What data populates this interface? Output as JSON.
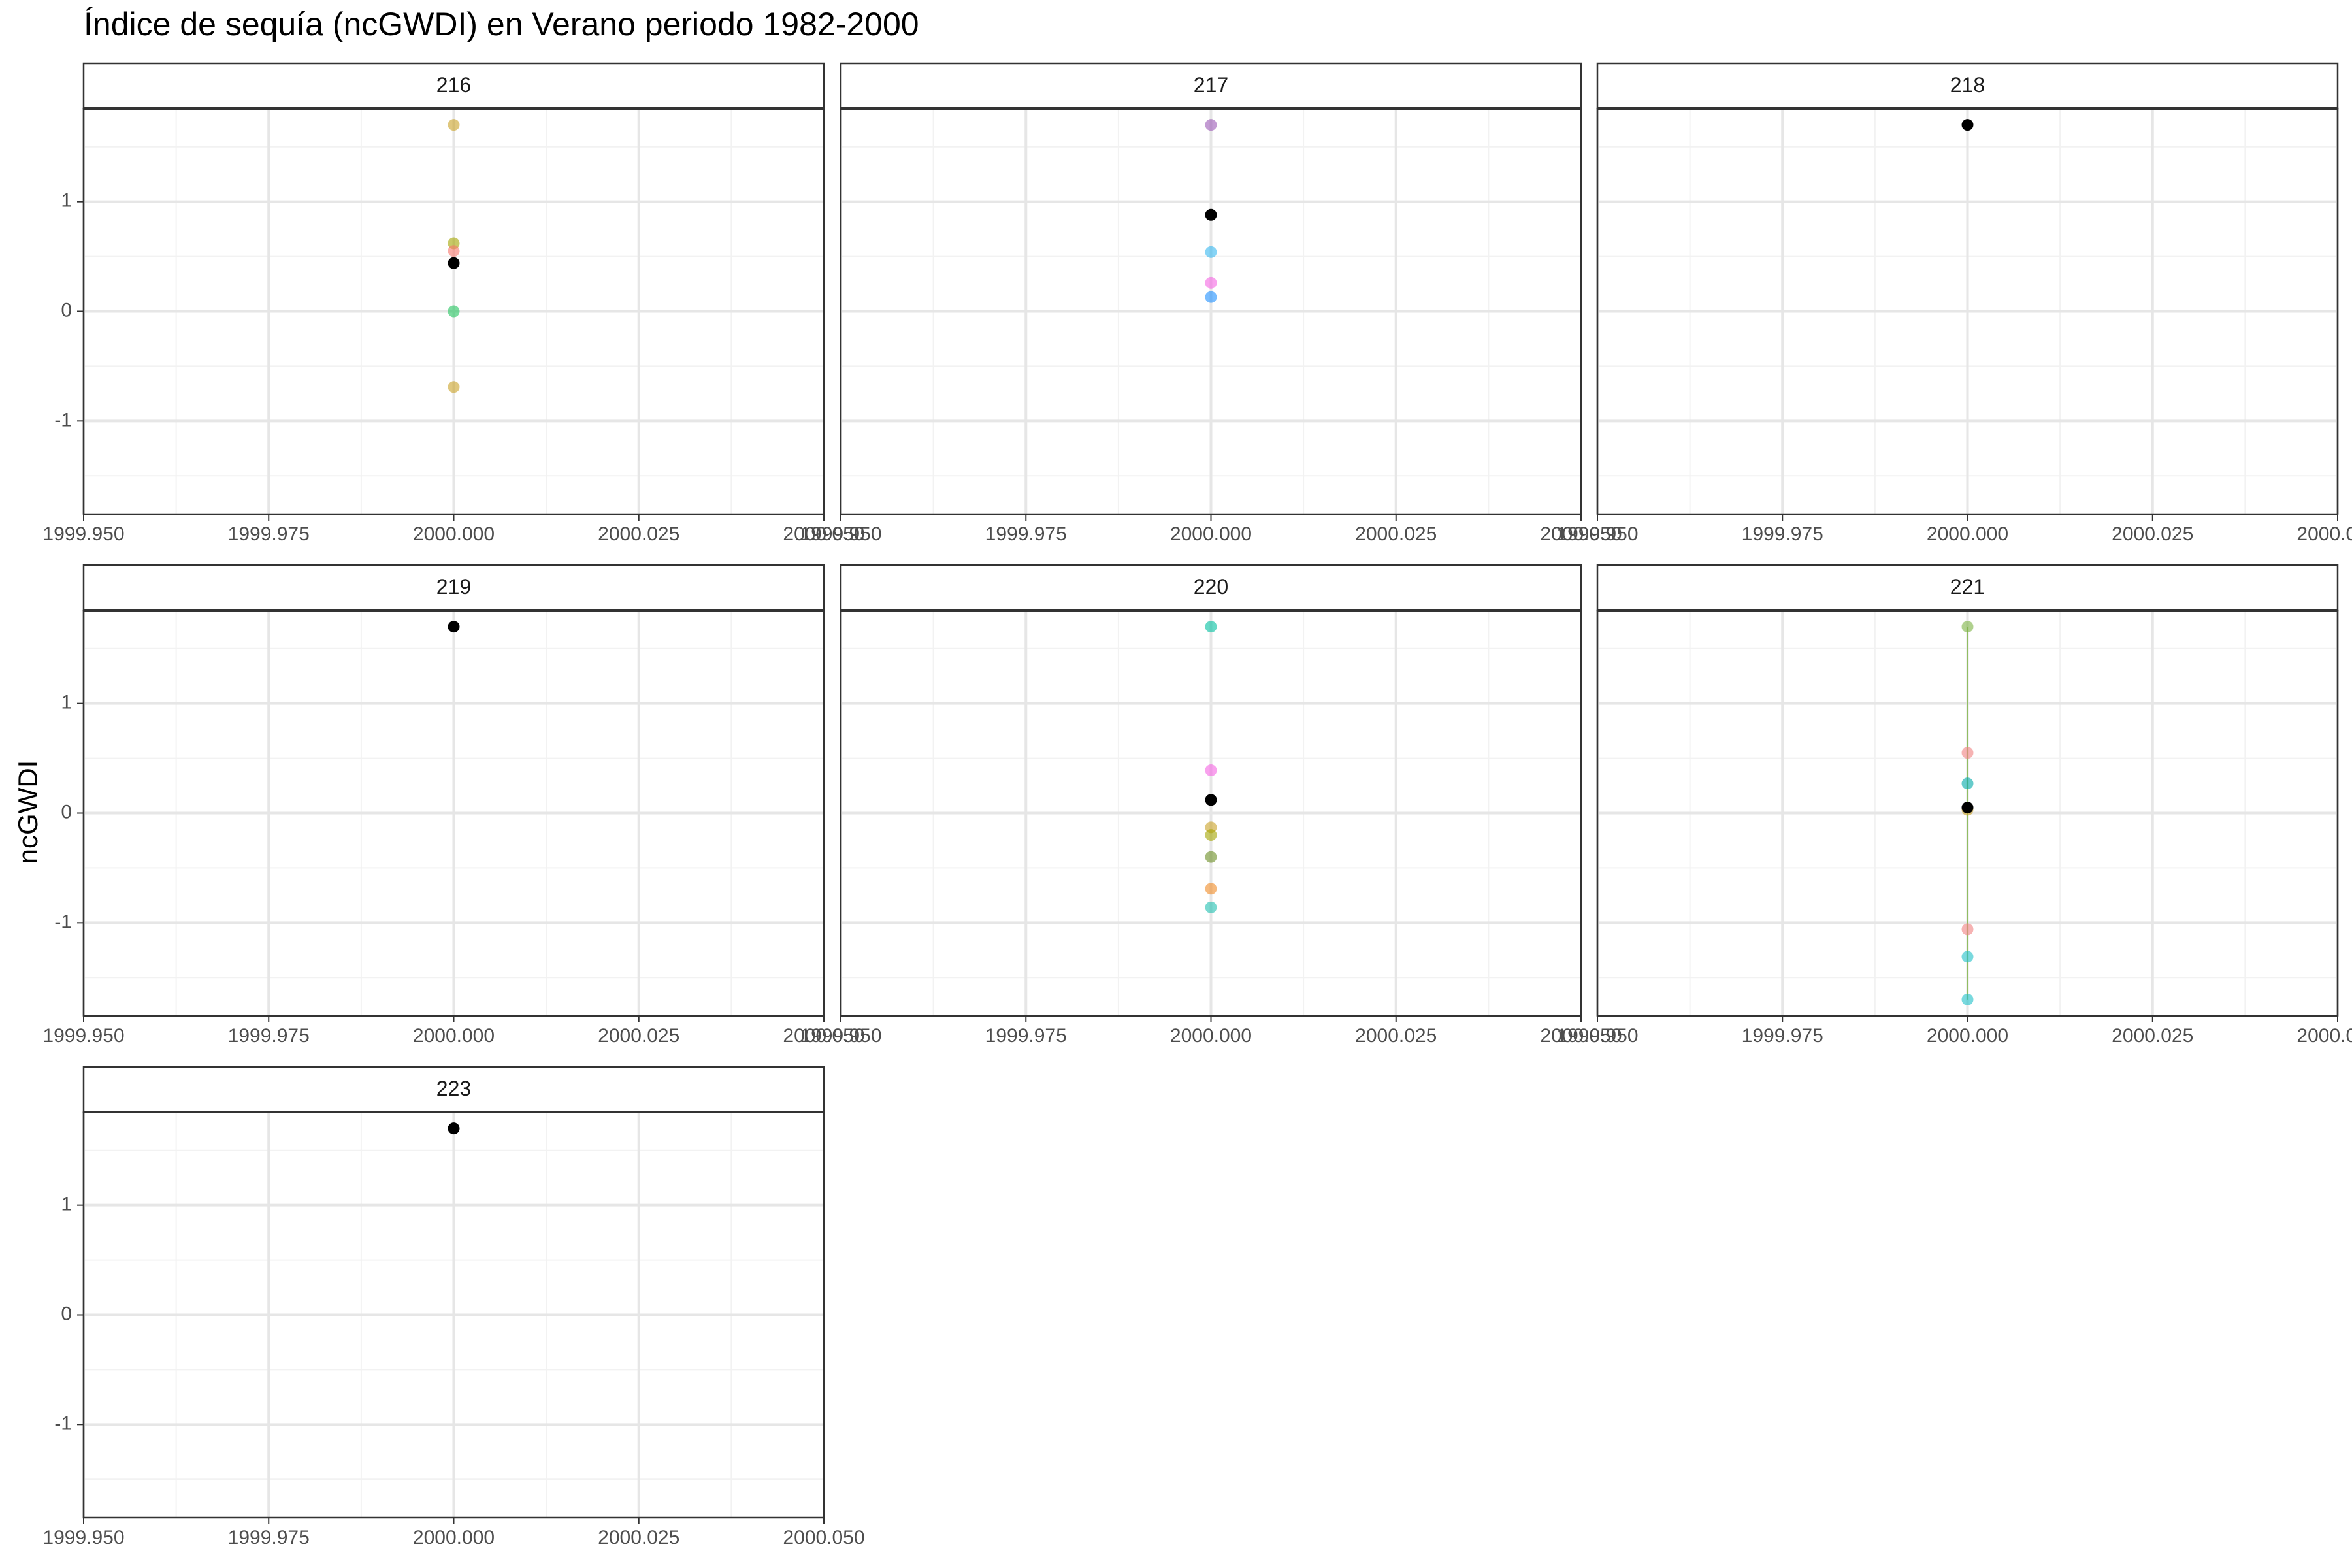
{
  "chart_data": {
    "type": "scatter",
    "title": "Índice de sequía (ncGWDI) en Verano periodo 1982-2000",
    "xlabel": "",
    "ylabel": "ncGWDI",
    "xlim": [
      1999.95,
      2000.05
    ],
    "ylim": [
      -1.85,
      1.85
    ],
    "x_ticks": [
      "1999.950",
      "1999.975",
      "2000.000",
      "2000.025",
      "2000.050"
    ],
    "y_ticks": [
      {
        "value": 1,
        "label": "1"
      },
      {
        "value": 0,
        "label": "0"
      },
      {
        "value": -1,
        "label": "-1"
      }
    ],
    "grid": true,
    "legend": "none",
    "panels": [
      {
        "label": "216",
        "points": [
          {
            "x": 2000.0,
            "y": 1.7,
            "color": "#C9A227"
          },
          {
            "x": 2000.0,
            "y": 0.62,
            "color": "#A3A500"
          },
          {
            "x": 2000.0,
            "y": 0.55,
            "color": "#F8766D"
          },
          {
            "x": 2000.0,
            "y": 0.44,
            "color": "#000000"
          },
          {
            "x": 2000.0,
            "y": 0.0,
            "color": "#22C55E"
          },
          {
            "x": 2000.0,
            "y": -0.69,
            "color": "#C9A227"
          }
        ]
      },
      {
        "label": "217",
        "points": [
          {
            "x": 2000.0,
            "y": 1.7,
            "color": "#9B59B6"
          },
          {
            "x": 2000.0,
            "y": 0.88,
            "color": "#000000"
          },
          {
            "x": 2000.0,
            "y": 0.54,
            "color": "#35B8F0"
          },
          {
            "x": 2000.0,
            "y": 0.26,
            "color": "#F564E3"
          },
          {
            "x": 2000.0,
            "y": 0.13,
            "color": "#1E90FF"
          }
        ]
      },
      {
        "label": "218",
        "points": [
          {
            "x": 2000.0,
            "y": 1.7,
            "color": "#000000"
          }
        ]
      },
      {
        "label": "219",
        "points": [
          {
            "x": 2000.0,
            "y": 1.7,
            "color": "#000000"
          }
        ]
      },
      {
        "label": "220",
        "points": [
          {
            "x": 2000.0,
            "y": 1.7,
            "color": "#00BFA0"
          },
          {
            "x": 2000.0,
            "y": 0.39,
            "color": "#F564E3"
          },
          {
            "x": 2000.0,
            "y": 0.12,
            "color": "#000000"
          },
          {
            "x": 2000.0,
            "y": -0.13,
            "color": "#C9A227"
          },
          {
            "x": 2000.0,
            "y": -0.2,
            "color": "#A3A500"
          },
          {
            "x": 2000.0,
            "y": -0.4,
            "color": "#6B8E23"
          },
          {
            "x": 2000.0,
            "y": -0.69,
            "color": "#F08A24"
          },
          {
            "x": 2000.0,
            "y": -0.86,
            "color": "#20C0B0"
          }
        ]
      },
      {
        "label": "221",
        "line_color": "#7CB342",
        "points": [
          {
            "x": 2000.0,
            "y": 1.7,
            "color": "#7CB342"
          },
          {
            "x": 2000.0,
            "y": 0.55,
            "color": "#F08080"
          },
          {
            "x": 2000.0,
            "y": 0.27,
            "color": "#00A9A9"
          },
          {
            "x": 2000.0,
            "y": 0.03,
            "color": "#C9A227"
          },
          {
            "x": 2000.0,
            "y": 0.05,
            "color": "#000000"
          },
          {
            "x": 2000.0,
            "y": -1.06,
            "color": "#F08080"
          },
          {
            "x": 2000.0,
            "y": -1.31,
            "color": "#20C0C8"
          },
          {
            "x": 2000.0,
            "y": -1.7,
            "color": "#20C0C8"
          }
        ]
      },
      {
        "label": "223",
        "points": [
          {
            "x": 2000.0,
            "y": 1.7,
            "color": "#000000"
          }
        ]
      }
    ]
  }
}
